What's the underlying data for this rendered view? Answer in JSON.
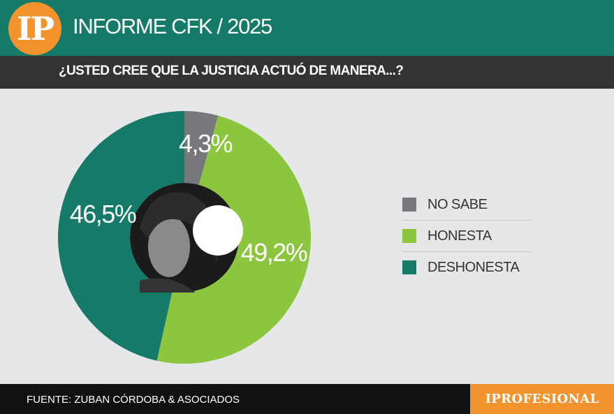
{
  "header": {
    "logo_text": "IP",
    "title": "INFORME CFK / 2025",
    "question": "¿USTED CREE QUE LA JUSTICIA ACTUÓ DE MANERA...?"
  },
  "colors": {
    "header_bg": "#157a68",
    "subbar_bg": "#333333",
    "accent_orange": "#f3932d",
    "no_sabe": "#77787b",
    "honesta": "#8cc63f",
    "deshonesta": "#157a68"
  },
  "chart_data": {
    "type": "pie",
    "variant": "donut",
    "categories": [
      "NO SABE",
      "HONESTA",
      "DESHONESTA"
    ],
    "values": [
      4.3,
      49.2,
      46.5
    ],
    "value_labels": [
      "4,3%",
      "49,2%",
      "46,5%"
    ],
    "colors": [
      "#77787b",
      "#8cc63f",
      "#157a68"
    ],
    "legend_position": "right",
    "center_image": "portrait-photo"
  },
  "legend": {
    "items": [
      {
        "label": "NO SABE",
        "color": "#77787b"
      },
      {
        "label": "HONESTA",
        "color": "#8cc63f"
      },
      {
        "label": "DESHONESTA",
        "color": "#157a68"
      }
    ]
  },
  "footer": {
    "source": "FUENTE: ZUBAN CÓRDOBA & ASOCIADOS",
    "brand": "IPROFESIONAL"
  }
}
